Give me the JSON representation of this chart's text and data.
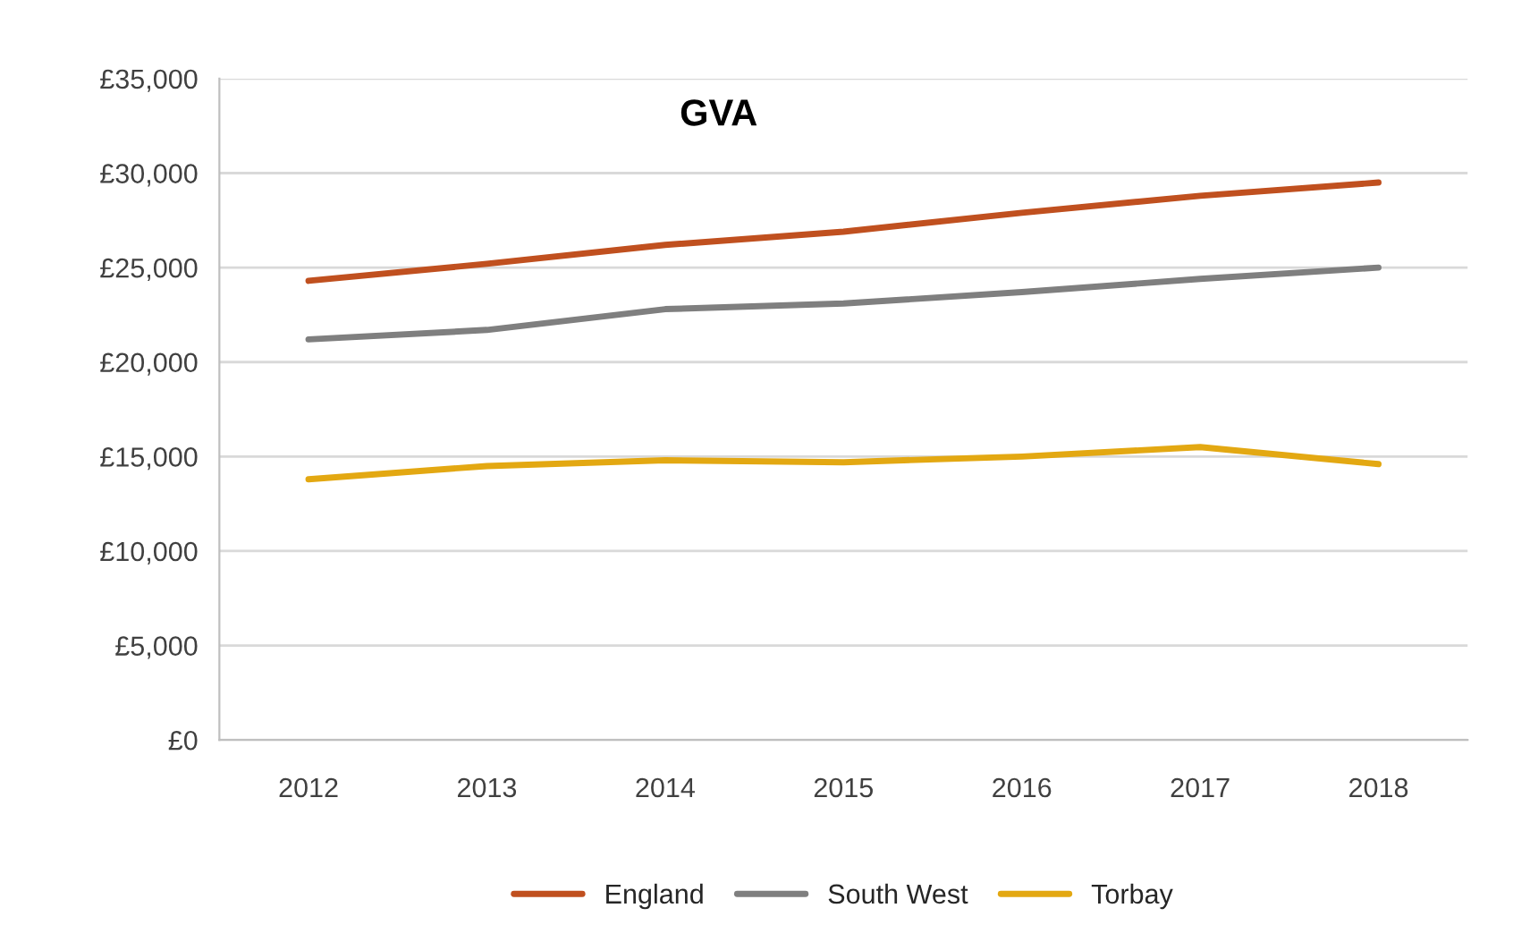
{
  "chart_data": {
    "type": "line",
    "title": "GVA",
    "categories": [
      "2012",
      "2013",
      "2014",
      "2015",
      "2016",
      "2017",
      "2018"
    ],
    "series": [
      {
        "name": "England",
        "color": "#c0501f",
        "values": [
          24300,
          25200,
          26200,
          26900,
          27900,
          28800,
          29500
        ]
      },
      {
        "name": "South West",
        "color": "#7f7f7f",
        "values": [
          21200,
          21700,
          22800,
          23100,
          23700,
          24400,
          25000
        ]
      },
      {
        "name": "Torbay",
        "color": "#e3a812",
        "values": [
          13800,
          14500,
          14800,
          14700,
          15000,
          15500,
          14600
        ]
      }
    ],
    "ylim": [
      0,
      35000
    ],
    "yticks": [
      {
        "value": 0,
        "label": "£0"
      },
      {
        "value": 5000,
        "label": "£5,000"
      },
      {
        "value": 10000,
        "label": "£10,000"
      },
      {
        "value": 15000,
        "label": "£15,000"
      },
      {
        "value": 20000,
        "label": "£20,000"
      },
      {
        "value": 25000,
        "label": "£25,000"
      },
      {
        "value": 30000,
        "label": "£30,000"
      },
      {
        "value": 35000,
        "label": "£35,000"
      }
    ],
    "grid": "y",
    "legend": "bottom",
    "line_style": "solid"
  }
}
